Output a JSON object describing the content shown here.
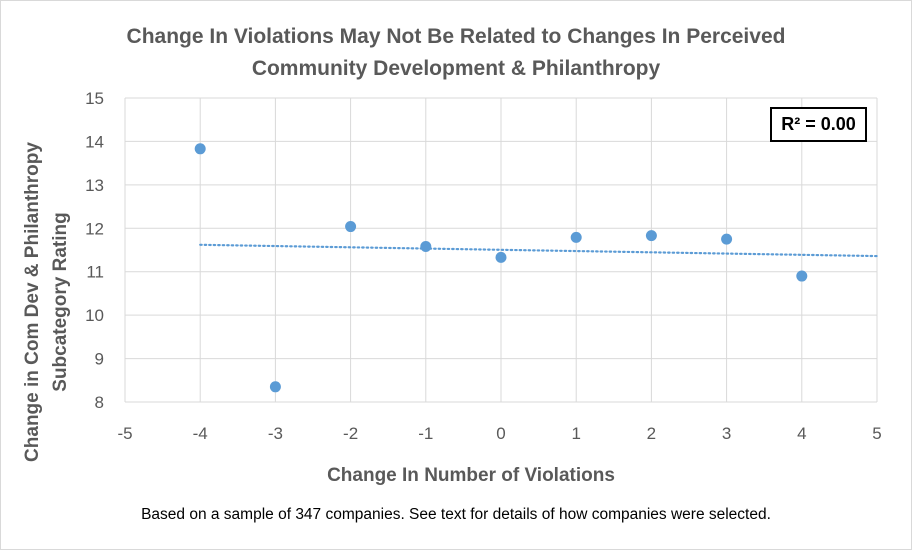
{
  "chart_data": {
    "type": "scatter",
    "title_lines": [
      "Change In Violations May Not Be Related to Changes In Perceived",
      "Community Development & Philanthropy"
    ],
    "xlabel": "Change In Number of Violations",
    "ylabel_lines": [
      "Change in Com Dev & Philanthropy",
      "Subcategory Rating"
    ],
    "xlim": [
      -5,
      5
    ],
    "ylim": [
      8,
      15
    ],
    "x_ticks": [
      -5,
      -4,
      -3,
      -2,
      -1,
      0,
      1,
      2,
      3,
      4,
      5
    ],
    "y_ticks": [
      8,
      9,
      10,
      11,
      12,
      13,
      14,
      15
    ],
    "grid": true,
    "points": [
      {
        "x": -4,
        "y": 13.83
      },
      {
        "x": -3,
        "y": 8.35
      },
      {
        "x": -2,
        "y": 12.04
      },
      {
        "x": -1,
        "y": 11.58
      },
      {
        "x": 0,
        "y": 11.33
      },
      {
        "x": 1,
        "y": 11.79
      },
      {
        "x": 2,
        "y": 11.83
      },
      {
        "x": 3,
        "y": 11.75
      },
      {
        "x": 4,
        "y": 10.9
      }
    ],
    "trendline": {
      "type": "linear",
      "style": "dotted",
      "x_start": -4,
      "y_start": 11.62,
      "x_end": 5,
      "y_end": 11.36
    },
    "annotation": "R² = 0.00",
    "colors": {
      "points": "#5b9bd5",
      "trendline": "#5b9bd5",
      "grid": "#d9d9d9",
      "text": "#595959"
    }
  },
  "footnote": "Based on a sample of 347 companies. See text for details of how companies were selected."
}
